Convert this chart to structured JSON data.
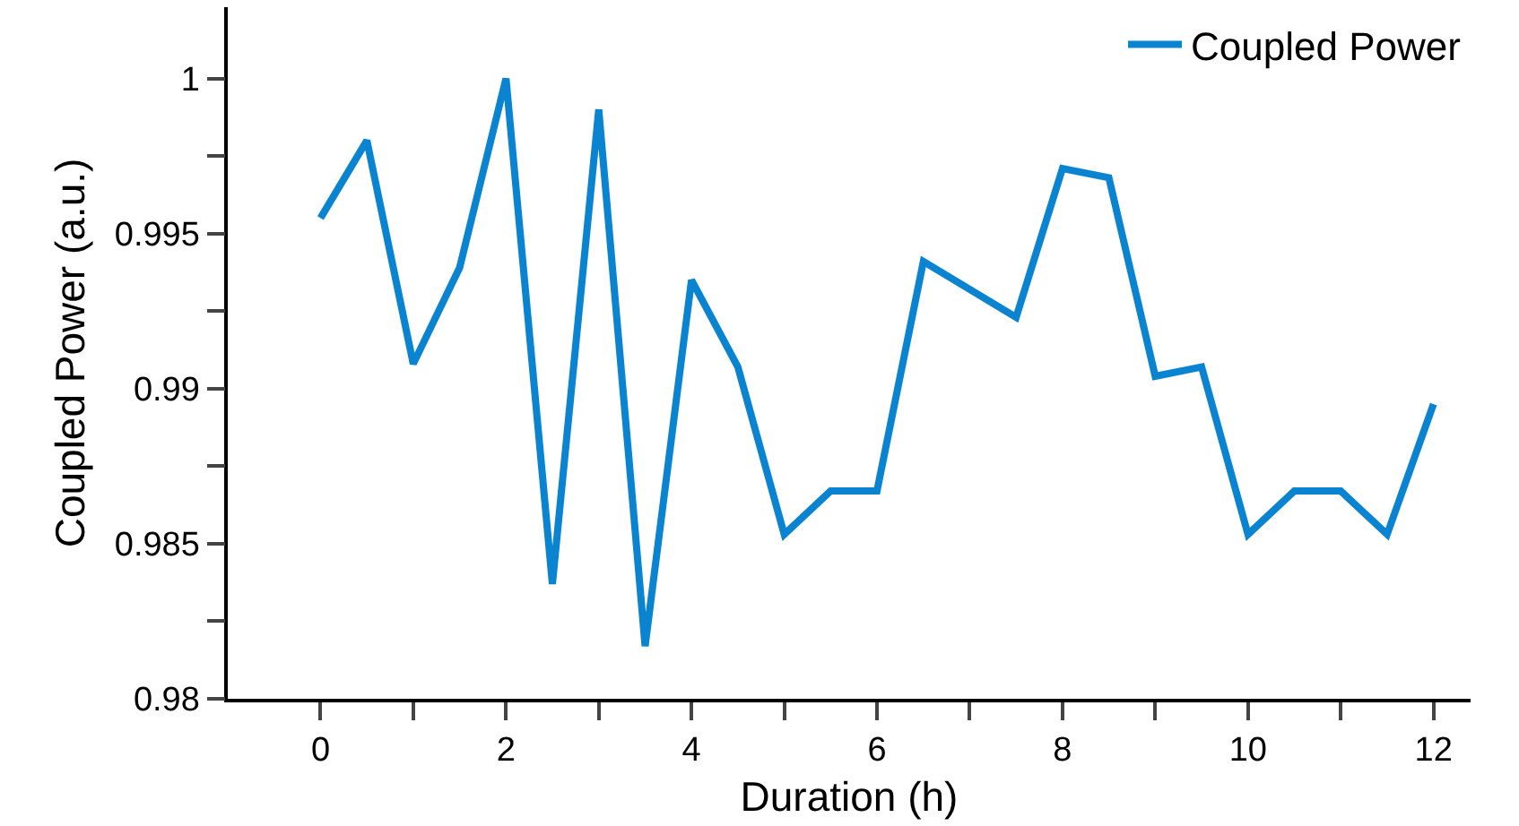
{
  "chart_data": {
    "type": "line",
    "xlabel": "Duration (h)",
    "ylabel": "Coupled Power (a.u.)",
    "x": [
      0,
      0.5,
      1,
      1.5,
      2,
      2.5,
      3,
      3.5,
      4,
      4.5,
      5,
      5.5,
      6,
      6.5,
      7.5,
      8,
      8.5,
      9,
      9.5,
      10,
      10.5,
      11,
      11.5,
      12
    ],
    "series": [
      {
        "name": "Coupled Power",
        "color": "#0a84d0",
        "values": [
          0.9955,
          0.998,
          0.9908,
          0.9939,
          1.0,
          0.9837,
          0.999,
          0.9817,
          0.9935,
          0.9907,
          0.9853,
          0.9867,
          0.9867,
          0.9941,
          0.9923,
          0.9971,
          0.9968,
          0.9904,
          0.9907,
          0.9853,
          0.9867,
          0.9867,
          0.9853,
          0.9895
        ]
      }
    ],
    "xlim": [
      -1,
      12.4
    ],
    "ylim": [
      0.98,
      1.0023
    ],
    "xticks": [
      0,
      {
        "value": 1,
        "label": null
      },
      2,
      {
        "value": 3,
        "label": null
      },
      4,
      {
        "value": 5,
        "label": null
      },
      6,
      {
        "value": 7,
        "label": null
      },
      8,
      {
        "value": 9,
        "label": null
      },
      10,
      {
        "value": 11,
        "label": null
      },
      12
    ],
    "yticks": [
      0.98,
      {
        "value": 0.9825,
        "label": null
      },
      0.985,
      {
        "value": 0.9875,
        "label": null
      },
      0.99,
      {
        "value": 0.9925,
        "label": null
      },
      0.995,
      {
        "value": 0.9975,
        "label": null
      },
      1
    ],
    "grid": false,
    "legend": "top right",
    "marker": "none",
    "line_style": "solid"
  }
}
